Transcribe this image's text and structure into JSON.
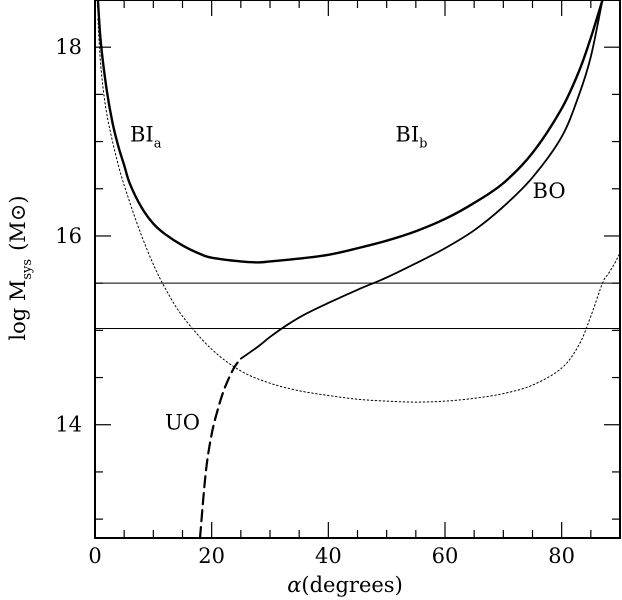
{
  "chart_data": {
    "type": "line",
    "title": "",
    "xlabel": {
      "prefix": "α",
      "text": "(degrees)"
    },
    "ylabel": {
      "main": "log M",
      "sub": "sys",
      "unit": "(M",
      "unit_symbol": "⊙",
      "unit_close": ")"
    },
    "xlim": [
      0,
      90
    ],
    "ylim": [
      12.8,
      18.5
    ],
    "x_ticks_major": [
      0,
      20,
      40,
      60,
      80
    ],
    "x_ticks_minor_step": 5,
    "y_ticks_major": [
      14,
      16,
      18
    ],
    "y_ticks_minor_step": 0.5,
    "x_tick_labels": [
      "0",
      "20",
      "40",
      "60",
      "80"
    ],
    "y_tick_labels": [
      "14",
      "16",
      "18"
    ],
    "grid": false,
    "legend": "none",
    "horizontal_lines": [
      15.5,
      15.02
    ],
    "series": [
      {
        "style": "thick",
        "x": [
          0.5,
          1,
          2,
          3,
          4,
          5,
          6,
          8,
          10,
          12,
          15,
          18,
          20,
          25,
          28,
          30,
          35,
          40,
          45,
          50,
          55,
          60,
          65,
          70,
          75,
          80,
          83,
          85,
          87
        ],
        "y": [
          18.5,
          18.05,
          17.55,
          17.2,
          16.95,
          16.75,
          16.55,
          16.3,
          16.13,
          16.02,
          15.9,
          15.81,
          15.77,
          15.73,
          15.72,
          15.73,
          15.76,
          15.8,
          15.87,
          15.95,
          16.05,
          16.18,
          16.35,
          16.56,
          16.88,
          17.35,
          17.75,
          18.1,
          18.5
        ]
      },
      {
        "style": "solid",
        "x": [
          25,
          28,
          30,
          33,
          36,
          40,
          45,
          50,
          55,
          60,
          65,
          70,
          75,
          80,
          83,
          85,
          87
        ],
        "y": [
          14.7,
          14.83,
          14.93,
          15.06,
          15.17,
          15.29,
          15.43,
          15.56,
          15.71,
          15.87,
          16.06,
          16.31,
          16.62,
          17.05,
          17.5,
          17.9,
          18.5
        ]
      },
      {
        "style": "dashed",
        "x": [
          18,
          19,
          20,
          21,
          22,
          23,
          24,
          25
        ],
        "y": [
          12.8,
          13.5,
          13.9,
          14.15,
          14.35,
          14.5,
          14.62,
          14.7
        ]
      },
      {
        "style": "dotted",
        "x": [
          0.5,
          1,
          2,
          4,
          6,
          8,
          10,
          12,
          15,
          20,
          25,
          30,
          35,
          40,
          45,
          50,
          55,
          60,
          65,
          70,
          75,
          80,
          83,
          85,
          87,
          88,
          89,
          90
        ],
        "y": [
          18.3,
          17.8,
          17.3,
          16.75,
          16.35,
          16.0,
          15.7,
          15.45,
          15.15,
          14.8,
          14.57,
          14.44,
          14.36,
          14.31,
          14.27,
          14.25,
          14.24,
          14.25,
          14.28,
          14.33,
          14.42,
          14.6,
          14.85,
          15.15,
          15.5,
          15.6,
          15.7,
          15.82
        ]
      }
    ],
    "annotations": [
      {
        "id": "bia",
        "main": "BI",
        "sub": "a",
        "x": 6,
        "y": 17.0
      },
      {
        "id": "bib",
        "main": "BI",
        "sub": "b",
        "x": 51.5,
        "y": 17.0
      },
      {
        "id": "bo",
        "main": "BO",
        "sub": "",
        "x": 75,
        "y": 16.4
      },
      {
        "id": "uo",
        "main": "UO",
        "sub": "",
        "x": 12,
        "y": 13.95
      }
    ]
  }
}
